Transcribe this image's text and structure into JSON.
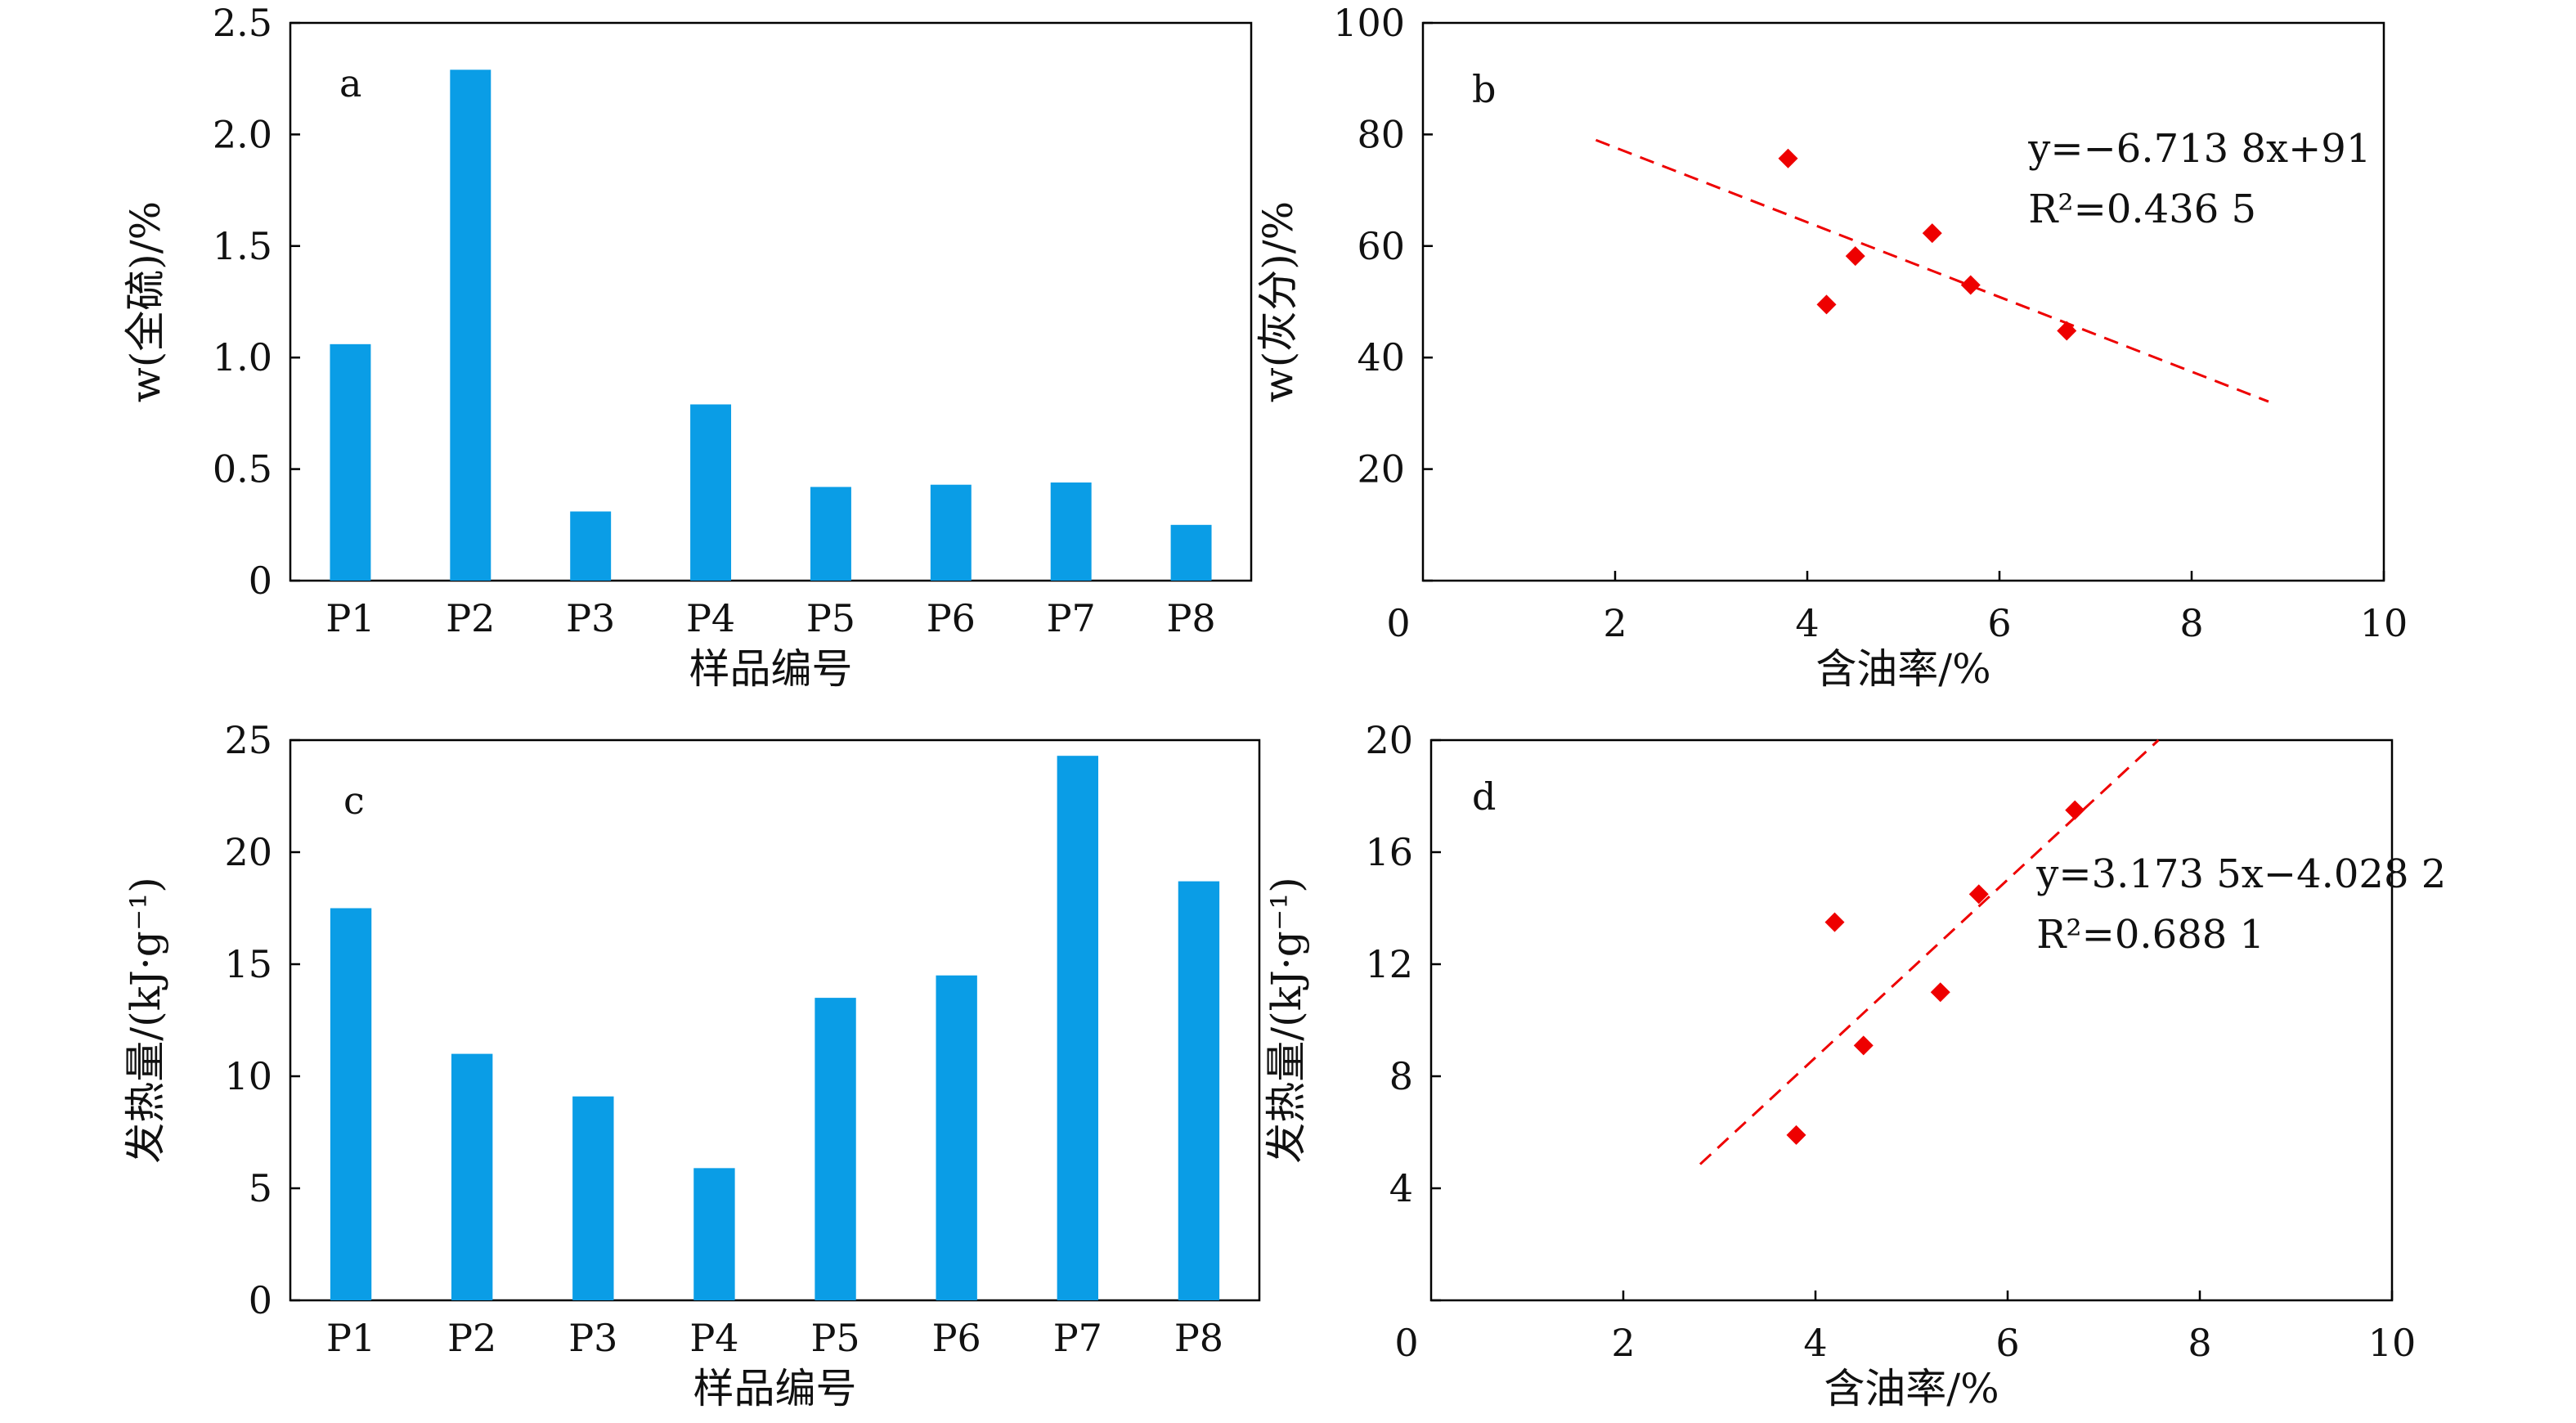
{
  "colors": {
    "bar": "#0a9de6",
    "point": "#ee0000",
    "trend": "#ee0000",
    "axis": "#000000"
  },
  "chart_data": [
    {
      "panel": "a",
      "type": "bar",
      "categories": [
        "P1",
        "P2",
        "P3",
        "P4",
        "P5",
        "P6",
        "P7",
        "P8"
      ],
      "values": [
        1.06,
        2.29,
        0.31,
        0.79,
        0.42,
        0.43,
        0.44,
        0.25
      ],
      "xlabel": "样品编号",
      "ylabel": "w(全硫)/%",
      "ylim": [
        0,
        2.5
      ],
      "yticks": [
        "0",
        "0.5",
        "1.0",
        "1.5",
        "2.0",
        "2.5"
      ]
    },
    {
      "panel": "b",
      "type": "scatter",
      "x": [
        3.8,
        4.2,
        4.5,
        5.3,
        5.7,
        6.7
      ],
      "y": [
        75.7,
        49.5,
        58.2,
        62.3,
        53.0,
        44.8
      ],
      "trendline": {
        "x": [
          1.8,
          8.8
        ],
        "y": [
          79.0,
          32.1
        ]
      },
      "equation": "y=−6.713 8x+91",
      "r2": "R²=0.436 5",
      "xlabel": "含油率/%",
      "ylabel": "w(灰分)/%",
      "xlim": [
        0,
        10
      ],
      "ylim": [
        0,
        100
      ],
      "xticks": [
        "0",
        "2",
        "4",
        "6",
        "8",
        "10"
      ],
      "yticks": [
        "0",
        "20",
        "40",
        "60",
        "80",
        "100"
      ]
    },
    {
      "panel": "c",
      "type": "bar",
      "categories": [
        "P1",
        "P2",
        "P3",
        "P4",
        "P5",
        "P6",
        "P7",
        "P8"
      ],
      "values": [
        17.5,
        11.0,
        9.1,
        5.9,
        13.5,
        14.5,
        24.3,
        18.7
      ],
      "xlabel": "样品编号",
      "ylabel": "发热量/(kJ·g⁻¹)",
      "ylim": [
        0,
        25
      ],
      "yticks": [
        "0",
        "5",
        "10",
        "15",
        "20",
        "25"
      ]
    },
    {
      "panel": "d",
      "type": "scatter",
      "x": [
        3.8,
        4.2,
        4.5,
        5.3,
        5.7,
        6.7
      ],
      "y": [
        5.9,
        13.5,
        9.1,
        11.0,
        14.5,
        17.5
      ],
      "trendline": {
        "x": [
          2.8,
          7.57
        ],
        "y": [
          4.86,
          20.0
        ]
      },
      "equation": "y=3.173 5x−4.028 2",
      "r2": "R²=0.688 1",
      "xlabel": "含油率/%",
      "ylabel": "发热量/(kJ·g⁻¹)",
      "xlim": [
        0,
        10
      ],
      "ylim": [
        0,
        20
      ],
      "xticks": [
        "0",
        "2",
        "4",
        "6",
        "8",
        "10"
      ],
      "yticks": [
        "0",
        "4",
        "8",
        "12",
        "16",
        "20"
      ]
    }
  ]
}
